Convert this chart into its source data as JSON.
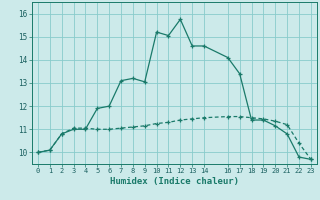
{
  "xlabel": "Humidex (Indice chaleur)",
  "background_color": "#cceaea",
  "grid_color": "#88cccc",
  "line_color": "#1a7a6a",
  "tick_color": "#1a6060",
  "xlim": [
    -0.5,
    23.5
  ],
  "ylim": [
    9.5,
    16.5
  ],
  "yticks": [
    10,
    11,
    12,
    13,
    14,
    15,
    16
  ],
  "xticks": [
    0,
    1,
    2,
    3,
    4,
    5,
    6,
    7,
    8,
    9,
    10,
    11,
    12,
    13,
    14,
    16,
    17,
    18,
    19,
    20,
    21,
    22,
    23
  ],
  "xtick_labels": [
    "0",
    "1",
    "2",
    "3",
    "4",
    "5",
    "6",
    "7",
    "8",
    "9",
    "10",
    "11",
    "12",
    "13",
    "14",
    "16",
    "17",
    "18",
    "19",
    "20",
    "21",
    "22",
    "23"
  ],
  "line1_x": [
    0,
    1,
    2,
    3,
    4,
    5,
    6,
    7,
    8,
    9,
    10,
    11,
    12,
    13,
    14,
    16,
    17,
    18,
    19,
    20,
    21,
    22,
    23
  ],
  "line1_y": [
    10.0,
    10.1,
    10.8,
    11.0,
    11.0,
    11.9,
    12.0,
    13.1,
    13.2,
    13.05,
    15.2,
    15.05,
    15.75,
    14.6,
    14.6,
    14.1,
    13.4,
    11.4,
    11.4,
    11.15,
    10.8,
    9.8,
    9.7
  ],
  "line2_x": [
    0,
    1,
    2,
    3,
    4,
    5,
    6,
    7,
    8,
    9,
    10,
    11,
    12,
    13,
    14,
    16,
    17,
    18,
    19,
    20,
    21,
    22,
    23
  ],
  "line2_y": [
    10.0,
    10.1,
    10.8,
    11.05,
    11.05,
    11.0,
    11.0,
    11.05,
    11.1,
    11.15,
    11.25,
    11.3,
    11.4,
    11.45,
    11.5,
    11.55,
    11.55,
    11.5,
    11.45,
    11.35,
    11.2,
    10.4,
    9.7
  ]
}
